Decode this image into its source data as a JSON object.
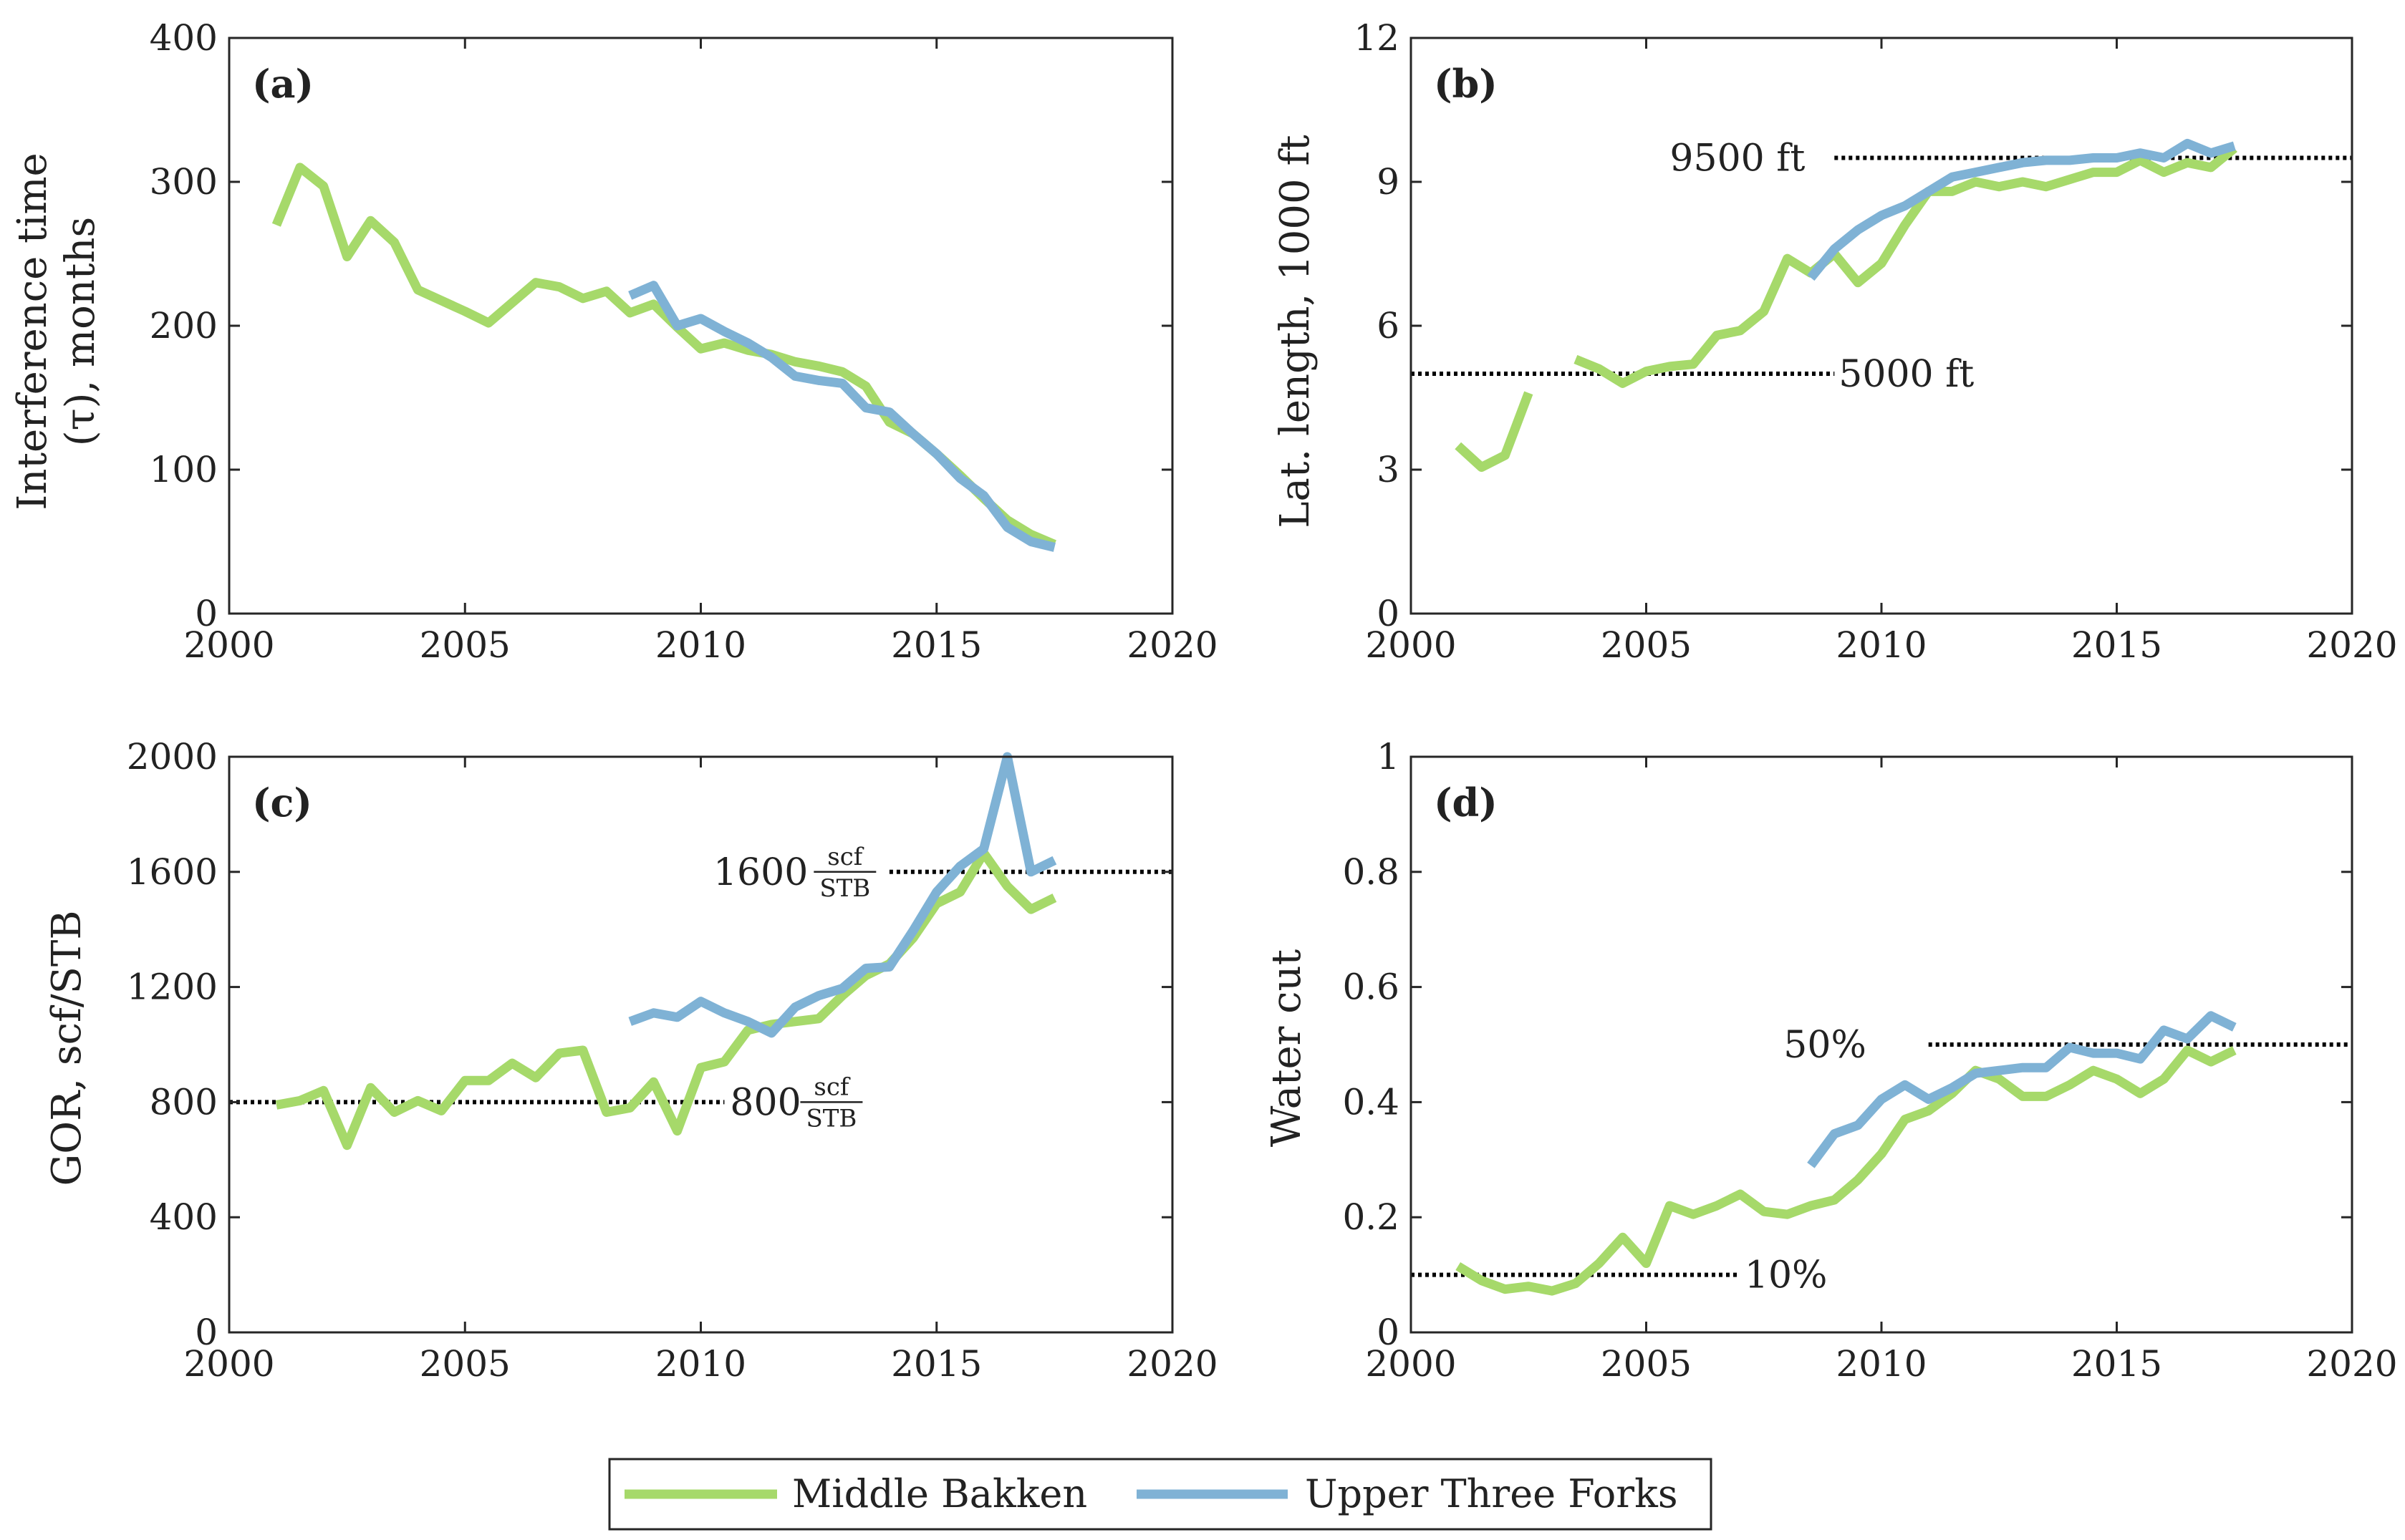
{
  "colors": {
    "middle_bakken": "#a6d96a",
    "upper_three_forks": "#7fb2d5"
  },
  "legend": {
    "middle_bakken": "Middle Bakken",
    "upper_three_forks": "Upper Three Forks"
  },
  "chart_data": [
    {
      "id": "a",
      "type": "line",
      "panel_label": "(a)",
      "ylabel_line1": "Interference time",
      "ylabel_line2": "(τ), months",
      "xlim": [
        2000,
        2020
      ],
      "ylim": [
        0,
        400
      ],
      "xticks": [
        2000,
        2005,
        2010,
        2015,
        2020
      ],
      "yticks": [
        0,
        100,
        200,
        300,
        400
      ],
      "series": [
        {
          "name": "Middle Bakken",
          "key": "middle_bakken",
          "x": [
            2001,
            2001.5,
            2002,
            2002.5,
            2003,
            2003.5,
            2004,
            2005,
            2005.5,
            2006,
            2006.5,
            2007,
            2007.5,
            2008,
            2008.5,
            2009,
            2009.5,
            2010,
            2010.5,
            2011,
            2011.5,
            2012,
            2012.5,
            2013,
            2013.5,
            2014,
            2014.5,
            2015,
            2015.5,
            2016,
            2016.5,
            2017,
            2017.5
          ],
          "y": [
            270,
            310,
            297,
            248,
            273,
            258,
            225,
            210,
            202,
            216,
            230,
            227,
            219,
            224,
            209,
            215,
            199,
            184,
            188,
            183,
            180,
            175,
            172,
            168,
            158,
            133,
            125,
            111,
            96,
            80,
            65,
            55,
            48
          ]
        },
        {
          "name": "Upper Three Forks",
          "key": "upper_three_forks",
          "x": [
            2008.5,
            2009,
            2009.5,
            2010,
            2010.5,
            2011,
            2011.5,
            2012,
            2012.5,
            2013,
            2013.5,
            2014,
            2014.5,
            2015,
            2015.5,
            2016,
            2016.5,
            2017,
            2017.5
          ],
          "y": [
            221,
            228,
            200,
            205,
            196,
            188,
            178,
            165,
            162,
            160,
            143,
            140,
            125,
            111,
            94,
            82,
            60,
            50,
            46
          ]
        }
      ],
      "ref_lines": []
    },
    {
      "id": "b",
      "type": "line",
      "panel_label": "(b)",
      "ylabel_line1": "Lat. length, 1000 ft",
      "ylabel_line2": "",
      "xlim": [
        2000,
        2020
      ],
      "ylim": [
        0,
        12
      ],
      "xticks": [
        2000,
        2005,
        2010,
        2015,
        2020
      ],
      "yticks": [
        0,
        3,
        6,
        9,
        12
      ],
      "series": [
        {
          "name": "Middle Bakken",
          "key": "middle_bakken",
          "segments": [
            {
              "x": [
                2001,
                2001.5,
                2002,
                2002.5
              ],
              "y": [
                3.5,
                3.05,
                3.3,
                4.6
              ]
            },
            {
              "x": [
                2003.5,
                2004,
                2004.5,
                2005,
                2005.5,
                2006,
                2006.5,
                2007,
                2007.5,
                2008,
                2008.5,
                2009,
                2009.5,
                2010,
                2010.5,
                2011,
                2011.5,
                2012,
                2012.5,
                2013,
                2013.5,
                2014,
                2014.5,
                2015,
                2015.5,
                2016,
                2016.5,
                2017,
                2017.5
              ],
              "y": [
                5.3,
                5.1,
                4.8,
                5.05,
                5.15,
                5.2,
                5.8,
                5.9,
                6.3,
                7.4,
                7.1,
                7.5,
                6.9,
                7.3,
                8.1,
                8.8,
                8.8,
                9.0,
                8.9,
                9.0,
                8.9,
                9.05,
                9.2,
                9.2,
                9.45,
                9.2,
                9.4,
                9.3,
                9.7
              ]
            }
          ]
        },
        {
          "name": "Upper Three Forks",
          "key": "upper_three_forks",
          "segments": [
            {
              "x": [
                2008.5,
                2009,
                2009.5,
                2010,
                2010.5,
                2011,
                2011.5,
                2012,
                2012.5,
                2013,
                2013.5,
                2014,
                2014.5,
                2015,
                2015.5,
                2016,
                2016.5,
                2017,
                2017.5
              ],
              "y": [
                7.0,
                7.6,
                8.0,
                8.3,
                8.5,
                8.8,
                9.1,
                9.2,
                9.3,
                9.4,
                9.45,
                9.45,
                9.5,
                9.5,
                9.6,
                9.5,
                9.8,
                9.6,
                9.75
              ]
            }
          ]
        }
      ],
      "ref_lines": [
        {
          "x0": 2009,
          "x1": 2020,
          "y": 9.5,
          "label": "9500 ft",
          "label_pos": "left",
          "label_gap": 0.5
        },
        {
          "x0": 2000,
          "x1": 2009,
          "y": 5.0,
          "label": "5000 ft",
          "label_pos": "right",
          "label_gap": 0
        }
      ]
    },
    {
      "id": "c",
      "type": "line",
      "panel_label": "(c)",
      "ylabel_line1": "GOR, scf/STB",
      "ylabel_line2": "",
      "xlim": [
        2000,
        2020
      ],
      "ylim": [
        0,
        2000
      ],
      "xticks": [
        2000,
        2005,
        2010,
        2015,
        2020
      ],
      "yticks": [
        0,
        400,
        800,
        1200,
        1600,
        2000
      ],
      "series": [
        {
          "name": "Middle Bakken",
          "key": "middle_bakken",
          "x": [
            2001,
            2001.5,
            2002,
            2002.5,
            2003,
            2003.5,
            2004,
            2004.5,
            2005,
            2005.5,
            2006,
            2006.5,
            2007,
            2007.5,
            2008,
            2008.5,
            2009,
            2009.5,
            2010,
            2010.5,
            2011,
            2011.5,
            2012,
            2012.5,
            2013,
            2013.5,
            2014,
            2014.5,
            2015,
            2015.5,
            2016,
            2016.5,
            2017,
            2017.5
          ],
          "y": [
            790,
            805,
            840,
            650,
            850,
            765,
            805,
            770,
            875,
            875,
            935,
            885,
            970,
            980,
            765,
            780,
            870,
            700,
            920,
            940,
            1050,
            1070,
            1080,
            1090,
            1170,
            1240,
            1280,
            1370,
            1490,
            1530,
            1665,
            1550,
            1470,
            1510
          ]
        },
        {
          "name": "Upper Three Forks",
          "key": "upper_three_forks",
          "x": [
            2008.5,
            2009,
            2009.5,
            2010,
            2010.5,
            2011,
            2011.5,
            2012,
            2012.5,
            2013,
            2013.5,
            2014,
            2014.5,
            2015,
            2015.5,
            2016,
            2016.5,
            2017,
            2017.5
          ],
          "y": [
            1080,
            1110,
            1095,
            1150,
            1110,
            1080,
            1040,
            1130,
            1170,
            1195,
            1265,
            1270,
            1395,
            1530,
            1620,
            1680,
            2000,
            1600,
            1640
          ]
        }
      ],
      "ref_lines": [
        {
          "x0": 2014,
          "x1": 2020,
          "y": 1600,
          "label_num": "1600",
          "label_top": "scf",
          "label_bottom": "STB",
          "label_pos": "left",
          "label_gap": 0.1
        },
        {
          "x0": 2000,
          "x1": 2010.5,
          "y": 800,
          "label_num": "800",
          "label_top": "scf",
          "label_bottom": "STB",
          "label_pos": "right",
          "label_gap": 0
        }
      ]
    },
    {
      "id": "d",
      "type": "line",
      "panel_label": "(d)",
      "ylabel_line1": "Water cut",
      "ylabel_line2": "",
      "xlim": [
        2000,
        2020
      ],
      "ylim": [
        0,
        1
      ],
      "xticks": [
        2000,
        2005,
        2010,
        2015,
        2020
      ],
      "yticks": [
        0,
        0.2,
        0.4,
        0.6,
        0.8,
        1
      ],
      "series": [
        {
          "name": "Middle Bakken",
          "key": "middle_bakken",
          "x": [
            2001,
            2001.5,
            2002,
            2002.5,
            2003,
            2003.5,
            2004,
            2004.5,
            2005,
            2005.5,
            2006,
            2006.5,
            2007,
            2007.5,
            2008,
            2008.5,
            2009,
            2009.5,
            2010,
            2010.5,
            2011,
            2011.5,
            2012,
            2012.5,
            2013,
            2013.5,
            2014,
            2014.5,
            2015,
            2015.5,
            2016,
            2016.5,
            2017,
            2017.5
          ],
          "y": [
            0.115,
            0.09,
            0.075,
            0.08,
            0.072,
            0.085,
            0.12,
            0.165,
            0.12,
            0.22,
            0.205,
            0.22,
            0.24,
            0.21,
            0.205,
            0.22,
            0.23,
            0.265,
            0.31,
            0.37,
            0.385,
            0.415,
            0.455,
            0.44,
            0.41,
            0.41,
            0.43,
            0.455,
            0.44,
            0.415,
            0.44,
            0.49,
            0.47,
            0.49
          ]
        },
        {
          "name": "Upper Three Forks",
          "key": "upper_three_forks",
          "x": [
            2008.5,
            2009,
            2009.5,
            2010,
            2010.5,
            2011,
            2011.5,
            2012,
            2012.5,
            2013,
            2013.5,
            2014,
            2014.5,
            2015,
            2015.5,
            2016,
            2016.5,
            2017,
            2017.5
          ],
          "y": [
            0.29,
            0.345,
            0.36,
            0.405,
            0.43,
            0.405,
            0.425,
            0.45,
            0.455,
            0.46,
            0.46,
            0.495,
            0.485,
            0.485,
            0.475,
            0.525,
            0.51,
            0.55,
            0.53
          ]
        }
      ],
      "ref_lines": [
        {
          "x0": 2011,
          "x1": 2020,
          "y": 0.5,
          "label": "50%",
          "label_pos": "left",
          "label_gap": 1.2
        },
        {
          "x0": 2000,
          "x1": 2007,
          "y": 0.1,
          "label": "10%",
          "label_pos": "right",
          "label_gap": 0
        }
      ]
    }
  ]
}
